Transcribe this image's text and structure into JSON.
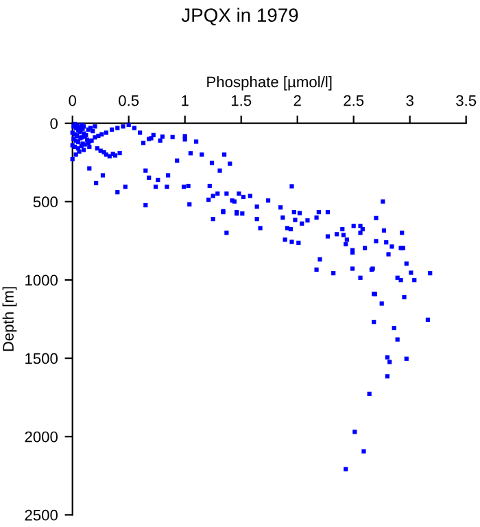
{
  "chart_data": {
    "type": "scatter",
    "title": "JPQX in 1979",
    "xlabel": "Phosphate [µmol/l]",
    "ylabel": "Depth [m]",
    "x": [
      0.01,
      0.02,
      0.03,
      0.04,
      0.05,
      0.06,
      0.07,
      0.08,
      0.09,
      0.1,
      0.0,
      0.02,
      0.04,
      0.06,
      0.08,
      0.1,
      0.12,
      0.14,
      0.16,
      0.18,
      0.2,
      0.01,
      0.03,
      0.05,
      0.07,
      0.09,
      0.11,
      0.13,
      0.15,
      0.0,
      0.02,
      0.05,
      0.08,
      0.11,
      0.14,
      0.17,
      0.2,
      0.23,
      0.26,
      0.3,
      0.35,
      0.4,
      0.45,
      0.5,
      0.55,
      0.0,
      0.03,
      0.06,
      0.1,
      0.15,
      0.15,
      0.21,
      0.4,
      0.47,
      0.27,
      0.22,
      0.25,
      0.28,
      0.3,
      0.33,
      0.36,
      0.38,
      0.42,
      0.65,
      0.65,
      0.68,
      0.74,
      0.76,
      0.84,
      0.85,
      0.93,
      0.99,
      1.03,
      1.04,
      1.05,
      1.1,
      1.15,
      1.24,
      1.22,
      1.25,
      1.21,
      1.31,
      1.35,
      1.4,
      1.37,
      1.42,
      1.25,
      1.34,
      1.37,
      1.46,
      1.51,
      1.0,
      1.0,
      0.89,
      0.6,
      0.68,
      0.72,
      0.8,
      0.63,
      0.7,
      0.78,
      1.29,
      1.48,
      1.52,
      1.58,
      1.44,
      1.34,
      1.46,
      1.64,
      1.74,
      1.64,
      1.67,
      1.95,
      1.85,
      1.87,
      1.97,
      2.02,
      1.98,
      1.91,
      1.94,
      2.04,
      2.09,
      2.17,
      2.19,
      2.27,
      1.89,
      1.95,
      2.01,
      2.27,
      2.35,
      2.4,
      2.41,
      2.44,
      2.43,
      2.5,
      2.56,
      2.56,
      2.58,
      2.49,
      2.49,
      2.6,
      2.7,
      2.7,
      2.76,
      2.77,
      2.79,
      2.84,
      2.81,
      2.93,
      2.92,
      2.94,
      2.2,
      2.17,
      2.32,
      2.49,
      2.66,
      2.67,
      2.97,
      3.01,
      2.89,
      2.92,
      3.04,
      3.18,
      2.56,
      2.69,
      2.95,
      2.68,
      2.75,
      2.68,
      2.86,
      3.16,
      2.89,
      2.8,
      2.82,
      2.97,
      2.8,
      2.64,
      2.51,
      2.59,
      2.43
    ],
    "values": [
      20,
      5,
      30,
      15,
      40,
      25,
      50,
      10,
      35,
      20,
      60,
      70,
      80,
      55,
      90,
      65,
      75,
      40,
      30,
      50,
      20,
      100,
      110,
      120,
      95,
      130,
      85,
      105,
      115,
      140,
      150,
      160,
      145,
      135,
      125,
      110,
      90,
      80,
      70,
      60,
      40,
      30,
      20,
      10,
      30,
      229,
      200,
      180,
      170,
      150,
      288,
      382,
      440,
      405,
      332,
      160,
      175,
      185,
      200,
      210,
      195,
      205,
      190,
      523,
      302,
      347,
      405,
      361,
      405,
      332,
      238,
      405,
      400,
      517,
      191,
      117,
      200,
      253,
      400,
      464,
      488,
      302,
      200,
      258,
      449,
      493,
      611,
      567,
      699,
      576,
      576,
      82,
      103,
      88,
      60,
      100,
      75,
      85,
      125,
      95,
      110,
      449,
      449,
      470,
      464,
      499,
      561,
      567,
      532,
      493,
      611,
      669,
      402,
      537,
      602,
      567,
      573,
      617,
      669,
      676,
      640,
      620,
      602,
      567,
      567,
      743,
      757,
      763,
      722,
      708,
      676,
      713,
      743,
      772,
      655,
      655,
      699,
      676,
      810,
      825,
      796,
      752,
      605,
      499,
      684,
      760,
      787,
      836,
      699,
      796,
      796,
      869,
      934,
      957,
      928,
      934,
      928,
      896,
      954,
      986,
      1001,
      1001,
      957,
      986,
      1090,
      1110,
      1089,
      1151,
      1268,
      1307,
      1254,
      1380,
      1494,
      1524,
      1503,
      1615,
      1727,
      1970,
      2094,
      2208
    ],
    "color": "#0000ff",
    "marker": "square",
    "xlim": [
      0,
      3.5
    ],
    "ylim": [
      2500,
      0
    ],
    "xticks": [
      0,
      0.5,
      1,
      1.5,
      2,
      2.5,
      3,
      3.5
    ],
    "yticks": [
      0,
      500,
      1000,
      1500,
      2000,
      2500
    ],
    "grid": false,
    "legend": false
  }
}
